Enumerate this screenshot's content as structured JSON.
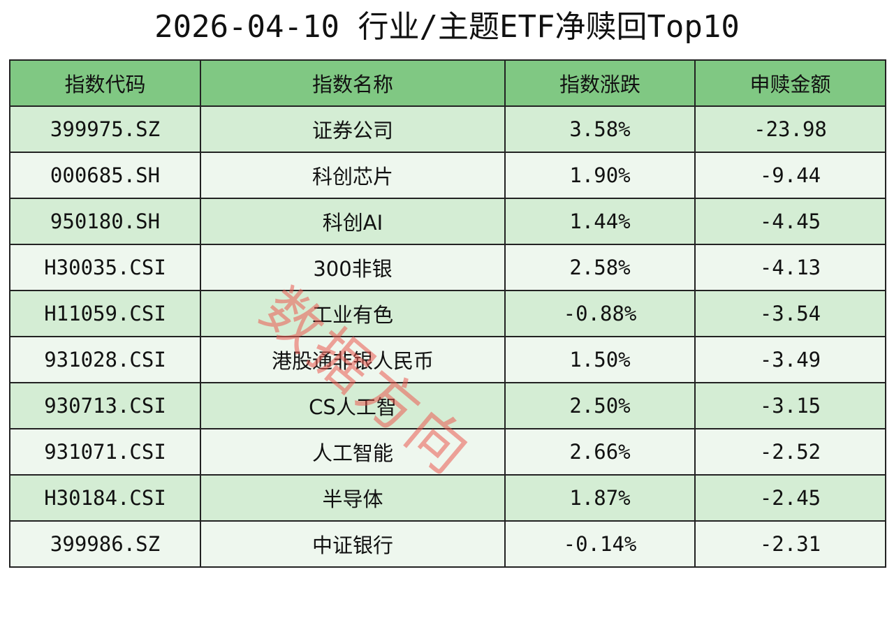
{
  "title": "2026-04-10 行业/主题ETF净赎回Top10",
  "headers": [
    "指数代码",
    "指数名称",
    "指数涨跌",
    "申赎金额"
  ],
  "rows": [
    {
      "code": "399975.SZ",
      "name": "证券公司",
      "change": "3.58%",
      "amount": "-23.98"
    },
    {
      "code": "000685.SH",
      "name": "科创芯片",
      "change": "1.90%",
      "amount": "-9.44"
    },
    {
      "code": "950180.SH",
      "name": "科创AI",
      "change": "1.44%",
      "amount": "-4.45"
    },
    {
      "code": "H30035.CSI",
      "name": "300非银",
      "change": "2.58%",
      "amount": "-4.13"
    },
    {
      "code": "H11059.CSI",
      "name": "工业有色",
      "change": "-0.88%",
      "amount": "-3.54"
    },
    {
      "code": "931028.CSI",
      "name": "港股通非银人民币",
      "change": "1.50%",
      "amount": "-3.49"
    },
    {
      "code": "930713.CSI",
      "name": "CS人工智",
      "change": "2.50%",
      "amount": "-3.15"
    },
    {
      "code": "931071.CSI",
      "name": "人工智能",
      "change": "2.66%",
      "amount": "-2.52"
    },
    {
      "code": "H30184.CSI",
      "name": "半导体",
      "change": "1.87%",
      "amount": "-2.45"
    },
    {
      "code": "399986.SZ",
      "name": "中证银行",
      "change": "-0.14%",
      "amount": "-2.31"
    }
  ],
  "watermark": "数据方向",
  "colors": {
    "header_bg": "#80c883",
    "row_odd_bg": "#d4edd4",
    "row_even_bg": "#eef7ee",
    "watermark": "#eb5a50"
  }
}
